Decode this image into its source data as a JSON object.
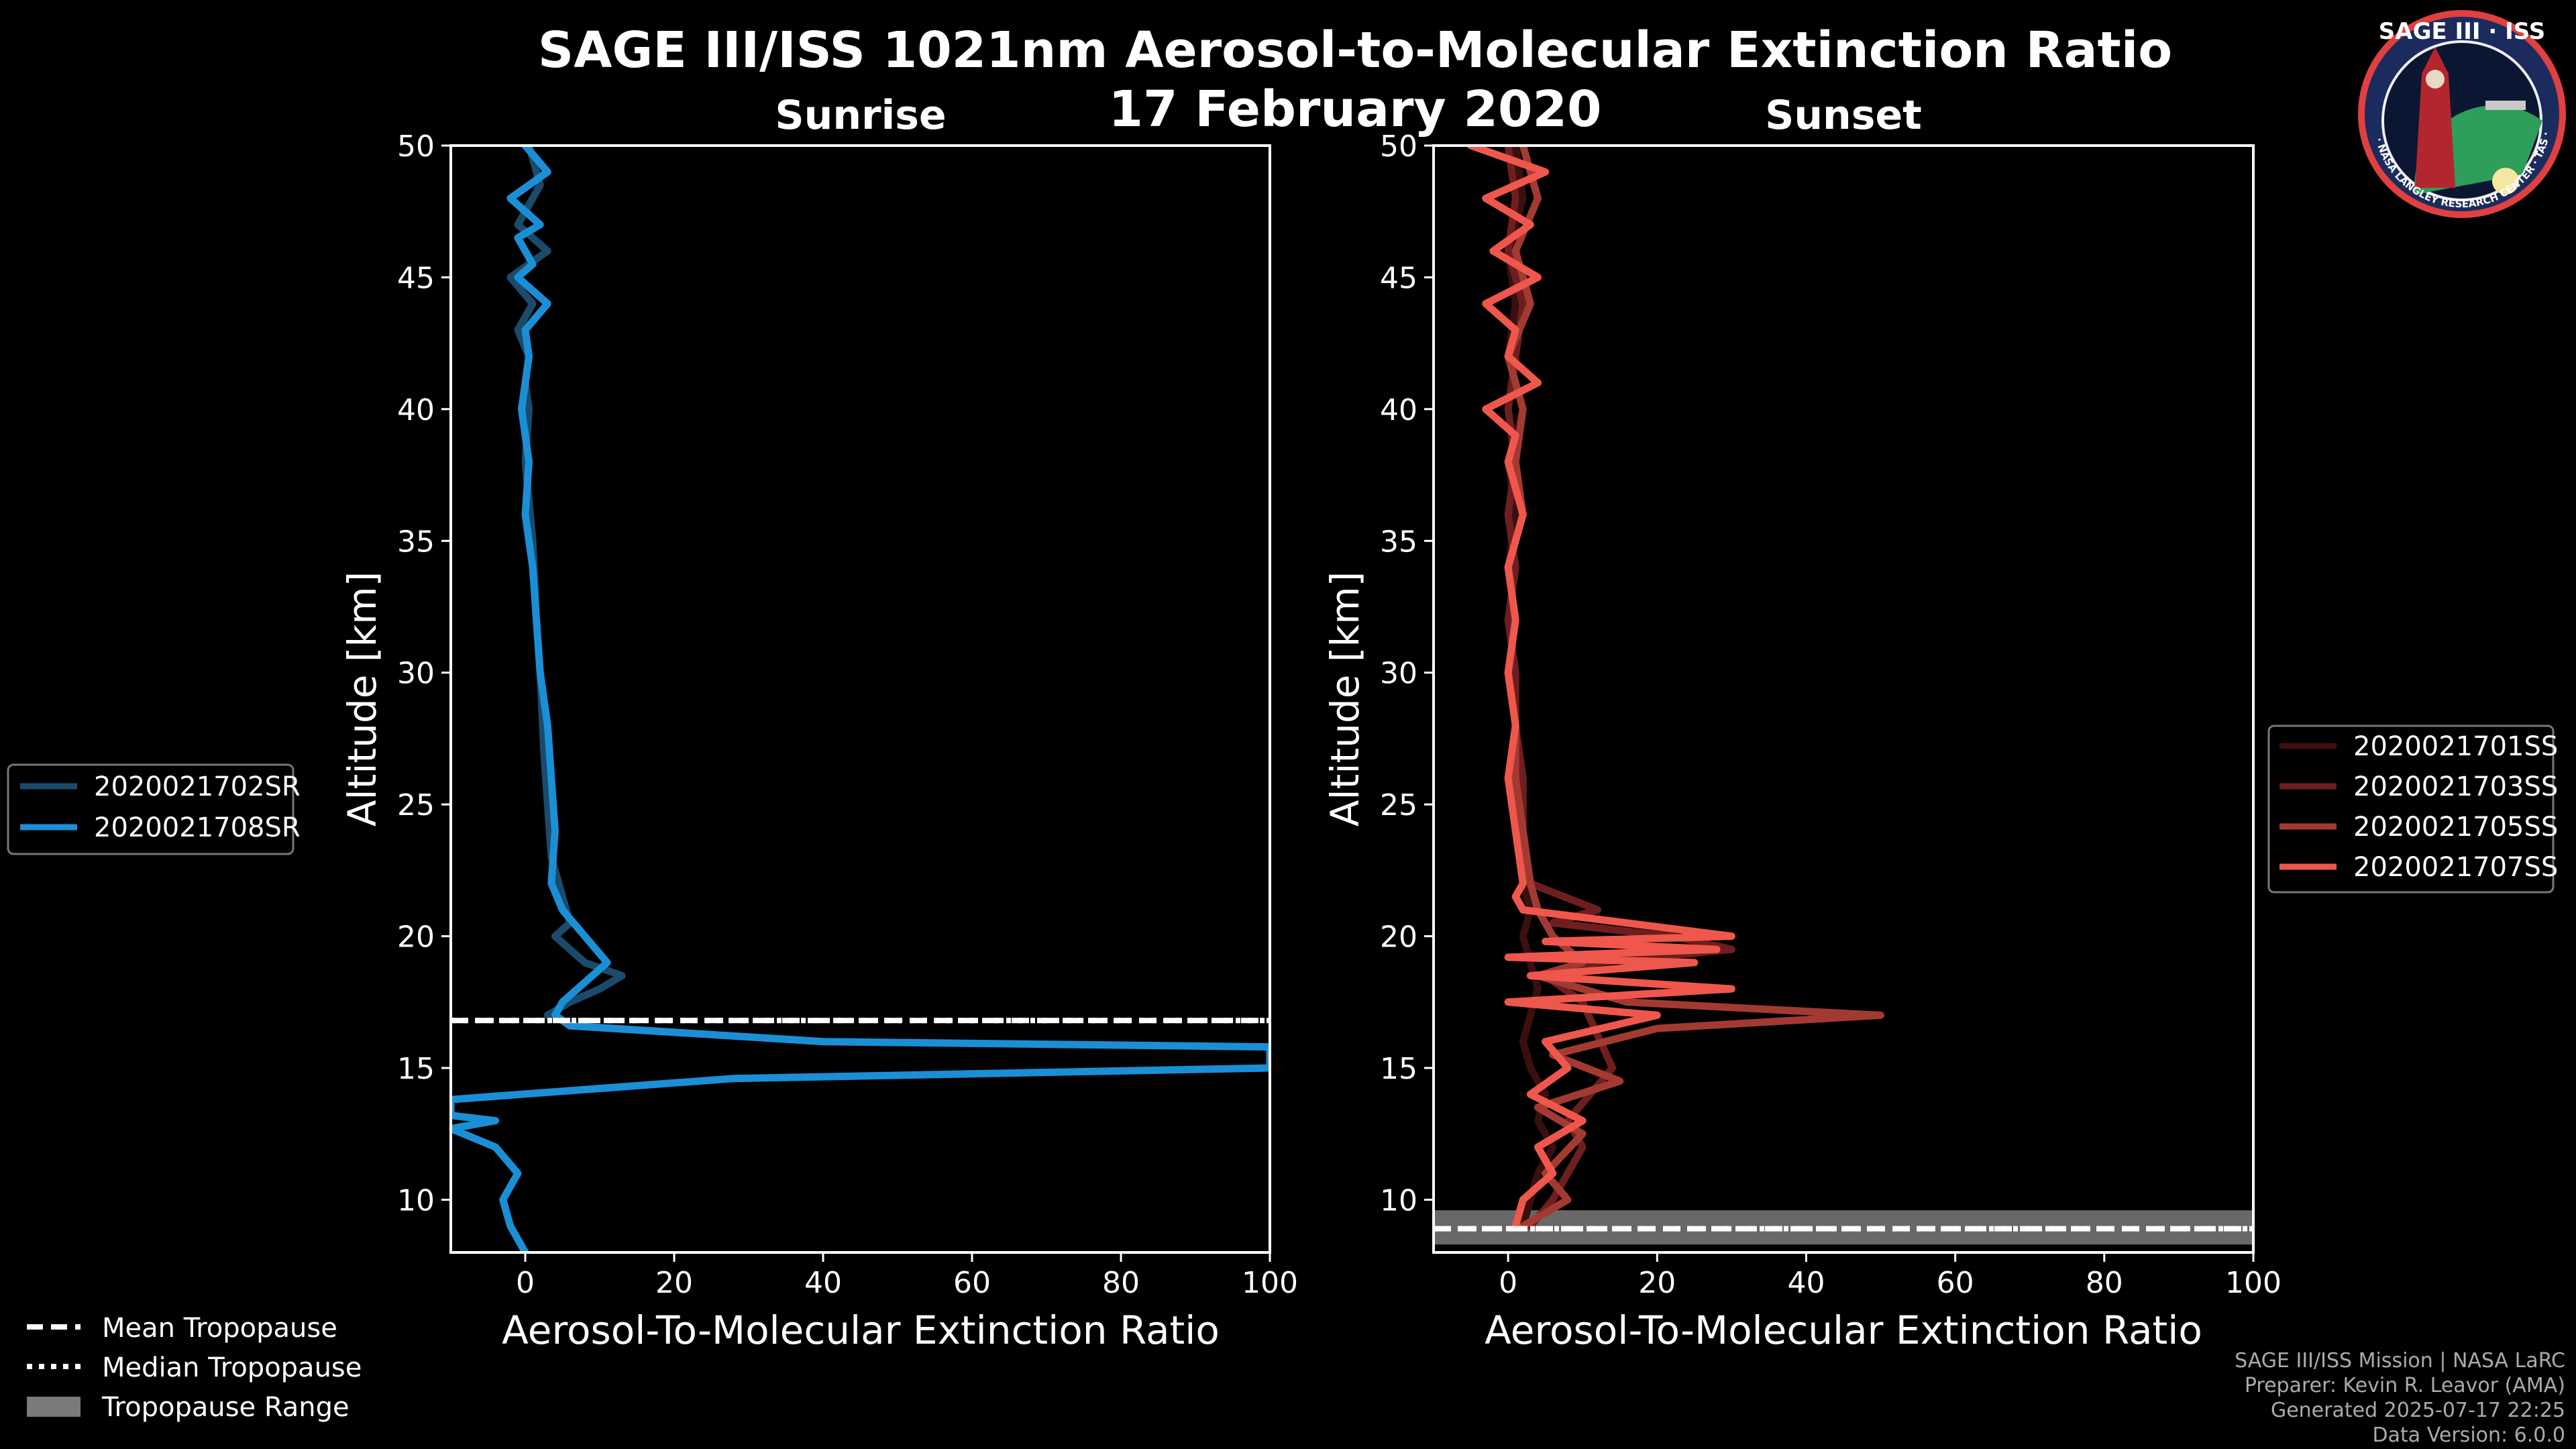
{
  "title": "SAGE III/ISS 1021nm Aerosol-to-Molecular Extinction Ratio",
  "date": "17 February 2020",
  "logo": {
    "text": "SAGE III · ISS",
    "ring_text": "BALL · NASA LANGLEY RESEARCH CENTER · TAS · ESA"
  },
  "credits": [
    "SAGE III/ISS Mission | NASA LaRC",
    "Preparer: Kevin R. Leavor (AMA)",
    "Generated 2025-07-17 22:25",
    "Data Version: 6.0.0"
  ],
  "tropopause_legend": {
    "mean": "Mean Tropopause",
    "median": "Median Tropopause",
    "range": "Tropopause Range"
  },
  "colors": {
    "background": "#000000",
    "sunrise_light": "#1a8fd6",
    "sunrise_dark": "#1b4a6b",
    "ss1": "#3a0f0f",
    "ss3": "#6e1e1e",
    "ss5": "#a33a32",
    "ss7": "#f0574c",
    "trop_range": "#7a7a7a"
  },
  "chart_data": [
    {
      "type": "line",
      "title": "Sunrise",
      "xlabel": "Aerosol-To-Molecular Extinction Ratio",
      "ylabel": "Altitude [km]",
      "xlim": [
        -10,
        100
      ],
      "ylim": [
        8,
        50
      ],
      "xticks": [
        0,
        20,
        40,
        60,
        80,
        100
      ],
      "yticks": [
        10,
        15,
        20,
        25,
        30,
        35,
        40,
        45,
        50
      ],
      "tropopause": {
        "mean": 16.8,
        "median": 16.8,
        "range": null
      },
      "series": [
        {
          "name": "2020021702SR",
          "color": "#1b4a6b",
          "x": [
            0.5,
            2,
            -1,
            3,
            -2,
            1,
            -1,
            0.5,
            0,
            0.5,
            0,
            1,
            1.5,
            2,
            2.5,
            3,
            3.5,
            5,
            6,
            4,
            8,
            13,
            10,
            6,
            3
          ],
          "y": [
            50,
            48.5,
            47,
            46,
            45,
            44,
            43,
            42,
            41,
            40,
            38,
            35,
            32,
            30,
            27,
            25,
            23,
            21.5,
            20.5,
            20,
            19,
            18.5,
            18,
            17.5,
            17
          ]
        },
        {
          "name": "2020021708SR",
          "color": "#1a8fd6",
          "x": [
            0,
            3,
            -2,
            2,
            -1,
            1,
            -1,
            3,
            0,
            0.5,
            -0.5,
            0.5,
            0,
            1,
            1.5,
            2,
            3,
            3.5,
            4,
            3.5,
            5,
            8,
            11,
            7,
            5,
            4,
            6,
            40,
            100,
            100,
            28,
            -10,
            -10,
            -4,
            -10,
            -4,
            -1,
            -3,
            -2,
            0
          ],
          "y": [
            50,
            49,
            48,
            47,
            46.5,
            45.5,
            45,
            44,
            43,
            42,
            40,
            38,
            36,
            34,
            32,
            30,
            28,
            26,
            24,
            22,
            21,
            20,
            19,
            18,
            17.5,
            17,
            16.6,
            16,
            15.8,
            15,
            14.6,
            13.8,
            13.2,
            13,
            12.7,
            12,
            11,
            10,
            9,
            8
          ]
        }
      ]
    },
    {
      "type": "line",
      "title": "Sunset",
      "xlabel": "Aerosol-To-Molecular Extinction Ratio",
      "ylabel": "Altitude [km]",
      "xlim": [
        -10,
        100
      ],
      "ylim": [
        8,
        50
      ],
      "xticks": [
        0,
        20,
        40,
        60,
        80,
        100
      ],
      "yticks": [
        10,
        15,
        20,
        25,
        30,
        35,
        40,
        45,
        50
      ],
      "tropopause": {
        "mean": 8.9,
        "median": 8.9,
        "range": [
          8.3,
          9.6
        ]
      },
      "series": [
        {
          "name": "2020021701SS",
          "color": "#3a0f0f",
          "x": [
            1,
            2,
            0,
            1,
            0,
            2,
            0,
            1,
            0,
            1,
            0,
            1,
            1,
            2,
            2,
            3,
            2,
            3,
            4,
            3,
            2,
            3,
            5,
            4,
            6,
            4,
            3,
            2
          ],
          "y": [
            50,
            48,
            46,
            44,
            42,
            40,
            38,
            36,
            34,
            32,
            30,
            28,
            26,
            24,
            22,
            21,
            20,
            19,
            18,
            17,
            16,
            15,
            14,
            13,
            12,
            11,
            10,
            9
          ]
        },
        {
          "name": "2020021703SS",
          "color": "#6e1e1e",
          "x": [
            0,
            1,
            0,
            2,
            1,
            0,
            1,
            0,
            1,
            0,
            1,
            1,
            2,
            2,
            3,
            12,
            6,
            22,
            30,
            12,
            5,
            10,
            14,
            8,
            10,
            6,
            3
          ],
          "y": [
            50,
            48,
            46,
            44,
            42,
            40,
            38,
            36,
            34,
            32,
            30,
            28,
            26,
            24,
            22,
            21,
            20.5,
            20,
            19.5,
            19,
            18.5,
            17.5,
            15,
            13,
            12,
            10,
            9
          ]
        },
        {
          "name": "2020021705SS",
          "color": "#a33a32",
          "x": [
            2,
            4,
            1,
            3,
            0,
            2,
            1,
            2,
            0,
            1,
            0,
            1,
            1,
            2,
            3,
            4,
            6,
            10,
            4,
            16,
            50,
            20,
            6,
            15,
            4,
            10,
            5,
            8,
            2
          ],
          "y": [
            50,
            48,
            46,
            44,
            42,
            40,
            38,
            36,
            34,
            32,
            30,
            28,
            26,
            24,
            22,
            21,
            20,
            19,
            18.5,
            17.5,
            17,
            16.5,
            15.5,
            14.5,
            13.5,
            12.5,
            11,
            10,
            9
          ]
        },
        {
          "name": "2020021707SS",
          "color": "#f0574c",
          "x": [
            -5,
            5,
            -3,
            3,
            -2,
            4,
            -3,
            1,
            0,
            4,
            -3,
            1,
            0,
            2,
            0,
            1,
            0,
            1,
            0,
            1,
            2,
            1,
            2,
            30,
            5,
            28,
            0,
            25,
            3,
            30,
            0,
            20,
            5,
            8,
            3,
            10,
            4,
            6,
            2,
            1
          ],
          "y": [
            50,
            49,
            48,
            47,
            46,
            45,
            44,
            43,
            42,
            41,
            40,
            39,
            38,
            36,
            34,
            32,
            30,
            28,
            26,
            24,
            22,
            21.5,
            21,
            20,
            19.8,
            19.5,
            19.2,
            19,
            18.5,
            18,
            17.5,
            17,
            16,
            15,
            14,
            13,
            12,
            11,
            10,
            9
          ]
        }
      ]
    }
  ]
}
